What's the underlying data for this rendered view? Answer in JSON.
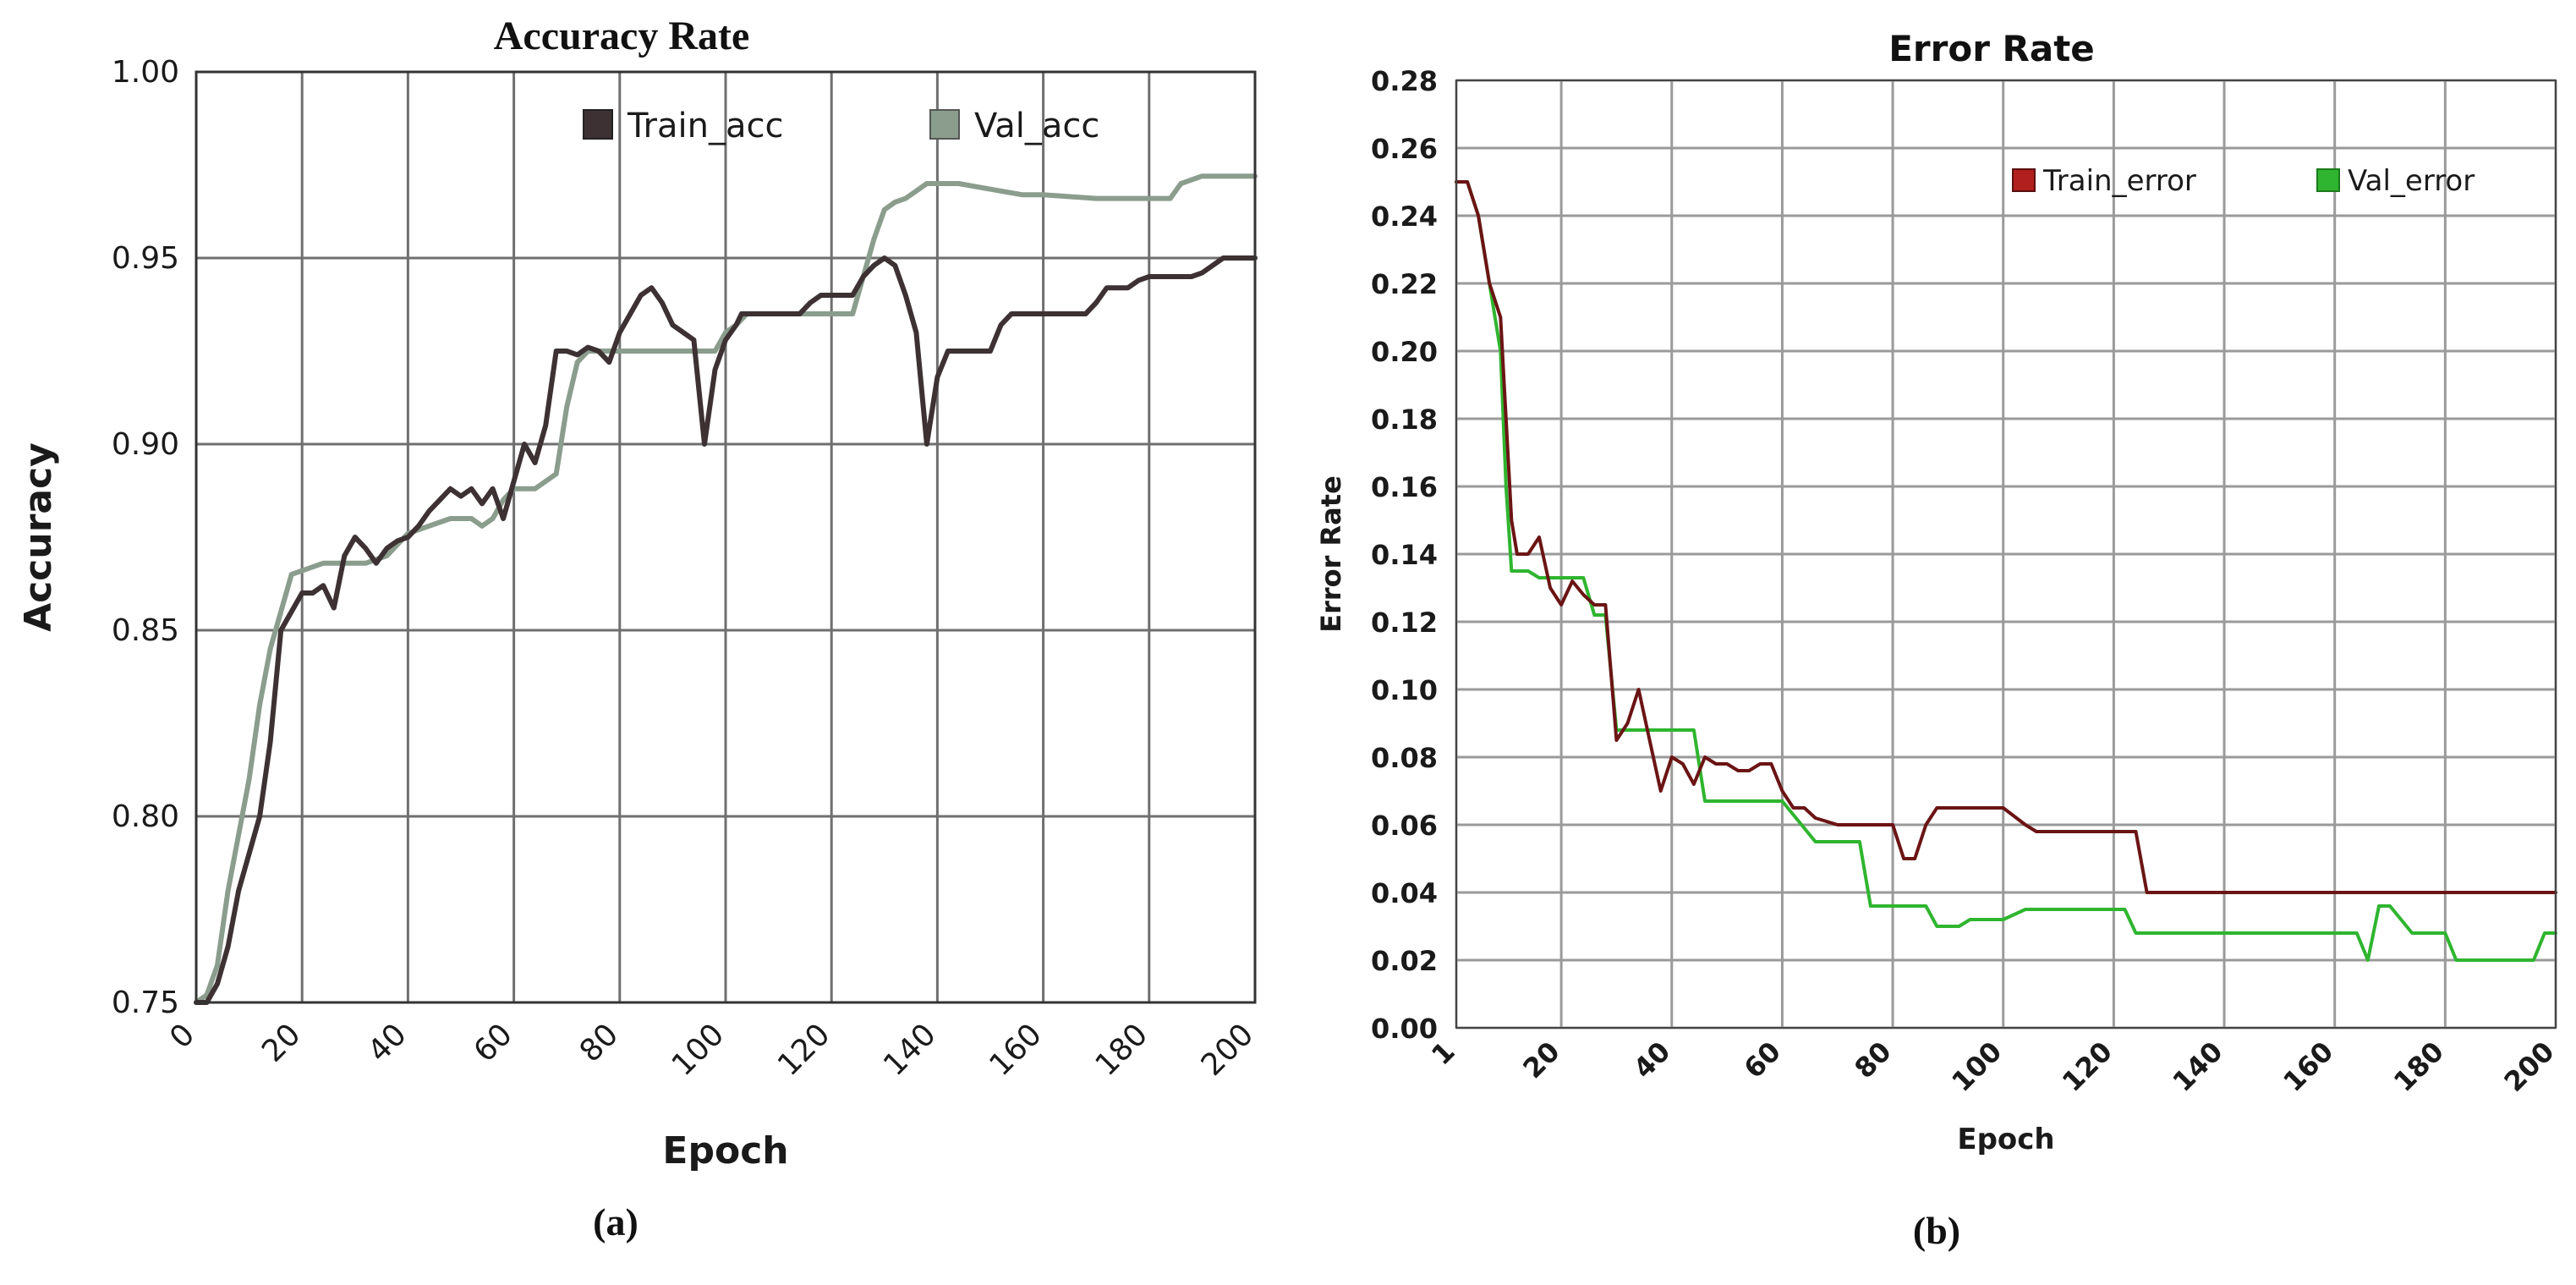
{
  "chart_data": [
    {
      "type": "line",
      "panel_label": "(a)",
      "title": "Accuracy Rate",
      "xlabel": "Epoch",
      "ylabel": "Accuracy",
      "xlim": [
        0,
        200
      ],
      "ylim": [
        0.75,
        1.0
      ],
      "x_ticks": [
        0,
        20,
        40,
        60,
        80,
        100,
        120,
        140,
        160,
        180,
        200
      ],
      "y_ticks": [
        0.75,
        0.8,
        0.85,
        0.9,
        0.95,
        1.0
      ],
      "y_tick_labels": [
        "0.75",
        "0.80",
        "0.85",
        "0.90",
        "0.95",
        "1.00"
      ],
      "grid": true,
      "legend_position": "top-right",
      "series": [
        {
          "name": "Train_acc",
          "color": "#3d3133",
          "x": [
            0,
            2,
            4,
            6,
            8,
            10,
            12,
            14,
            16,
            18,
            20,
            22,
            24,
            26,
            28,
            30,
            32,
            34,
            36,
            38,
            40,
            42,
            44,
            46,
            48,
            50,
            52,
            54,
            56,
            58,
            60,
            62,
            64,
            66,
            68,
            70,
            72,
            74,
            76,
            78,
            80,
            82,
            84,
            86,
            88,
            90,
            92,
            94,
            96,
            98,
            100,
            102,
            103,
            104,
            106,
            108,
            110,
            112,
            114,
            116,
            118,
            120,
            122,
            124,
            126,
            128,
            130,
            132,
            134,
            136,
            138,
            140,
            142,
            144,
            146,
            148,
            149,
            150,
            152,
            154,
            156,
            158,
            160,
            162,
            164,
            166,
            168,
            170,
            172,
            174,
            176,
            178,
            180,
            182,
            184,
            186,
            188,
            190,
            192,
            194,
            196,
            198,
            200
          ],
          "values": [
            0.75,
            0.75,
            0.755,
            0.765,
            0.78,
            0.79,
            0.8,
            0.82,
            0.85,
            0.855,
            0.86,
            0.86,
            0.862,
            0.856,
            0.87,
            0.875,
            0.872,
            0.868,
            0.872,
            0.874,
            0.875,
            0.878,
            0.882,
            0.885,
            0.888,
            0.886,
            0.888,
            0.884,
            0.888,
            0.88,
            0.89,
            0.9,
            0.895,
            0.905,
            0.925,
            0.925,
            0.924,
            0.926,
            0.925,
            0.922,
            0.93,
            0.935,
            0.94,
            0.942,
            0.938,
            0.932,
            0.93,
            0.928,
            0.9,
            0.92,
            0.928,
            0.932,
            0.935,
            0.935,
            0.935,
            0.935,
            0.935,
            0.935,
            0.935,
            0.938,
            0.94,
            0.94,
            0.94,
            0.94,
            0.945,
            0.948,
            0.95,
            0.948,
            0.94,
            0.93,
            0.9,
            0.918,
            0.925,
            0.925,
            0.925,
            0.925,
            0.925,
            0.925,
            0.932,
            0.935,
            0.935,
            0.935,
            0.935,
            0.935,
            0.935,
            0.935,
            0.935,
            0.938,
            0.942,
            0.942,
            0.942,
            0.944,
            0.945,
            0.945,
            0.945,
            0.945,
            0.945,
            0.946,
            0.948,
            0.95,
            0.95,
            0.95,
            0.95
          ]
        },
        {
          "name": "Val_acc",
          "color": "#8b9d8d",
          "x": [
            0,
            2,
            4,
            6,
            8,
            10,
            12,
            14,
            16,
            18,
            20,
            24,
            28,
            32,
            36,
            40,
            44,
            48,
            52,
            54,
            56,
            58,
            60,
            64,
            68,
            70,
            72,
            74,
            78,
            82,
            86,
            90,
            94,
            98,
            100,
            102,
            104,
            108,
            112,
            116,
            120,
            124,
            126,
            128,
            130,
            132,
            134,
            136,
            138,
            140,
            144,
            148,
            152,
            156,
            160,
            170,
            180,
            184,
            186,
            190,
            200
          ],
          "values": [
            0.75,
            0.752,
            0.76,
            0.78,
            0.795,
            0.81,
            0.83,
            0.845,
            0.855,
            0.865,
            0.866,
            0.868,
            0.868,
            0.868,
            0.87,
            0.876,
            0.878,
            0.88,
            0.88,
            0.878,
            0.88,
            0.885,
            0.888,
            0.888,
            0.892,
            0.91,
            0.922,
            0.925,
            0.925,
            0.925,
            0.925,
            0.925,
            0.925,
            0.925,
            0.93,
            0.932,
            0.935,
            0.935,
            0.935,
            0.935,
            0.935,
            0.935,
            0.945,
            0.955,
            0.963,
            0.965,
            0.966,
            0.968,
            0.97,
            0.97,
            0.97,
            0.969,
            0.968,
            0.967,
            0.967,
            0.966,
            0.966,
            0.966,
            0.97,
            0.972,
            0.972
          ]
        }
      ]
    },
    {
      "type": "line",
      "panel_label": "(b)",
      "title": "Error Rate",
      "xlabel": "Epoch",
      "ylabel": "Error Rate",
      "xlim": [
        1,
        200
      ],
      "ylim": [
        0,
        0.28
      ],
      "x_ticks": [
        1,
        20,
        40,
        60,
        80,
        100,
        120,
        140,
        160,
        180,
        200
      ],
      "y_ticks": [
        0,
        0.02,
        0.04,
        0.06,
        0.08,
        0.1,
        0.12,
        0.14,
        0.16,
        0.18,
        0.2,
        0.22,
        0.24,
        0.26,
        0.28
      ],
      "y_tick_labels": [
        "0.00",
        "0.02",
        "0.04",
        "0.06",
        "0.08",
        "0.10",
        "0.12",
        "0.14",
        "0.16",
        "0.18",
        "0.20",
        "0.22",
        "0.24",
        "0.26",
        "0.28"
      ],
      "grid": true,
      "legend_position": "top-right",
      "series": [
        {
          "name": "Train_error",
          "color": "#6b1414",
          "x": [
            1,
            3,
            5,
            7,
            9,
            10,
            11,
            12,
            14,
            16,
            18,
            20,
            22,
            24,
            26,
            28,
            30,
            32,
            34,
            36,
            38,
            40,
            42,
            44,
            46,
            48,
            50,
            52,
            54,
            56,
            58,
            60,
            62,
            64,
            66,
            70,
            74,
            78,
            80,
            82,
            84,
            86,
            88,
            90,
            94,
            100,
            104,
            106,
            110,
            116,
            122,
            124,
            126,
            130,
            140,
            160,
            180,
            200
          ],
          "values": [
            0.25,
            0.25,
            0.24,
            0.22,
            0.21,
            0.18,
            0.15,
            0.14,
            0.14,
            0.145,
            0.13,
            0.125,
            0.132,
            0.128,
            0.125,
            0.125,
            0.085,
            0.09,
            0.1,
            0.085,
            0.07,
            0.08,
            0.078,
            0.072,
            0.08,
            0.078,
            0.078,
            0.076,
            0.076,
            0.078,
            0.078,
            0.07,
            0.065,
            0.065,
            0.062,
            0.06,
            0.06,
            0.06,
            0.06,
            0.05,
            0.05,
            0.06,
            0.065,
            0.065,
            0.065,
            0.065,
            0.06,
            0.058,
            0.058,
            0.058,
            0.058,
            0.058,
            0.04,
            0.04,
            0.04,
            0.04,
            0.04,
            0.04
          ]
        },
        {
          "name": "Val_error",
          "color": "#2fb52f",
          "x": [
            1,
            3,
            5,
            7,
            9,
            10,
            11,
            12,
            14,
            16,
            20,
            24,
            26,
            28,
            30,
            32,
            40,
            44,
            46,
            50,
            60,
            66,
            68,
            74,
            76,
            78,
            86,
            88,
            92,
            94,
            100,
            104,
            110,
            122,
            124,
            130,
            160,
            162,
            164,
            166,
            168,
            170,
            172,
            174,
            180,
            182,
            186,
            190,
            196,
            198,
            200
          ],
          "values": [
            0.25,
            0.25,
            0.24,
            0.22,
            0.2,
            0.16,
            0.135,
            0.135,
            0.135,
            0.133,
            0.133,
            0.133,
            0.122,
            0.122,
            0.088,
            0.088,
            0.088,
            0.088,
            0.067,
            0.067,
            0.067,
            0.055,
            0.055,
            0.055,
            0.036,
            0.036,
            0.036,
            0.03,
            0.03,
            0.032,
            0.032,
            0.035,
            0.035,
            0.035,
            0.028,
            0.028,
            0.028,
            0.028,
            0.028,
            0.02,
            0.036,
            0.036,
            0.032,
            0.028,
            0.028,
            0.02,
            0.02,
            0.02,
            0.02,
            0.028,
            0.028
          ]
        }
      ]
    }
  ]
}
